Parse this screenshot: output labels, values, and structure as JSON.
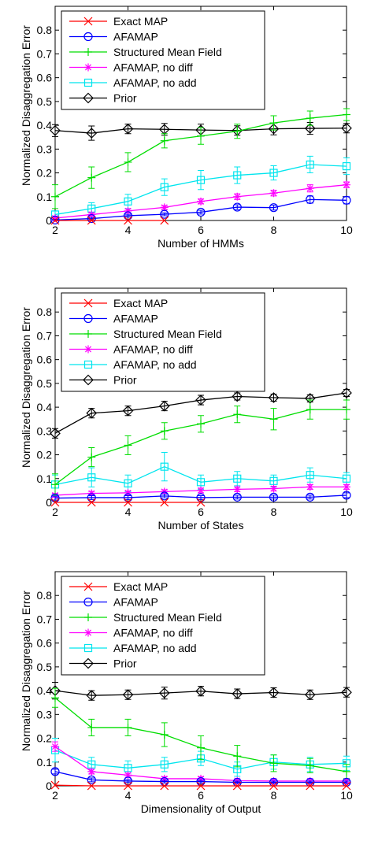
{
  "chart_data": [
    {
      "type": "line",
      "xlabel": "Number of HMMs",
      "ylabel": "Normalized Disaggregation Error",
      "xlim": [
        2,
        10
      ],
      "ylim": [
        0,
        0.9
      ],
      "xticks": [
        2,
        4,
        6,
        8,
        10
      ],
      "yticks": [
        0,
        0.1,
        0.2,
        0.3,
        0.4,
        0.5,
        0.6,
        0.7,
        0.8
      ],
      "legend": "top-left",
      "series": [
        {
          "name": "Exact MAP",
          "color": "#ff0000",
          "marker": "x",
          "x": [
            2,
            3,
            4,
            5
          ],
          "y": [
            0.0,
            0.0,
            0.0,
            0.0
          ],
          "err": [
            0,
            0,
            0,
            0
          ]
        },
        {
          "name": "AFAMAP",
          "color": "#0000ff",
          "marker": "circle",
          "x": [
            2,
            3,
            4,
            5,
            6,
            7,
            8,
            9,
            10
          ],
          "y": [
            0.002,
            0.008,
            0.02,
            0.026,
            0.035,
            0.056,
            0.054,
            0.088,
            0.085
          ],
          "err": [
            0.003,
            0.005,
            0.006,
            0.006,
            0.008,
            0.01,
            0.01,
            0.015,
            0.015
          ]
        },
        {
          "name": "Structured Mean Field",
          "color": "#00dd00",
          "marker": "plus",
          "x": [
            2,
            3,
            4,
            5,
            6,
            7,
            8,
            9,
            10
          ],
          "y": [
            0.1,
            0.18,
            0.245,
            0.335,
            0.355,
            0.375,
            0.41,
            0.43,
            0.445
          ],
          "err": [
            0.05,
            0.045,
            0.04,
            0.03,
            0.035,
            0.03,
            0.03,
            0.03,
            0.025
          ]
        },
        {
          "name": "AFAMAP, no diff",
          "color": "#ff00ff",
          "marker": "asterisk",
          "x": [
            2,
            3,
            4,
            5,
            6,
            7,
            8,
            9,
            10
          ],
          "y": [
            0.01,
            0.025,
            0.04,
            0.055,
            0.08,
            0.1,
            0.115,
            0.135,
            0.15
          ],
          "err": [
            0.005,
            0.007,
            0.008,
            0.008,
            0.01,
            0.012,
            0.012,
            0.015,
            0.012
          ]
        },
        {
          "name": "AFAMAP, no add",
          "color": "#00e5ee",
          "marker": "square",
          "x": [
            2,
            3,
            4,
            5,
            6,
            7,
            8,
            9,
            10
          ],
          "y": [
            0.025,
            0.05,
            0.08,
            0.14,
            0.17,
            0.19,
            0.2,
            0.235,
            0.228
          ],
          "err": [
            0.015,
            0.025,
            0.03,
            0.035,
            0.04,
            0.035,
            0.03,
            0.035,
            0.035
          ]
        },
        {
          "name": "Prior",
          "color": "#000000",
          "marker": "diamond",
          "x": [
            2,
            3,
            4,
            5,
            6,
            7,
            8,
            9,
            10
          ],
          "y": [
            0.378,
            0.367,
            0.385,
            0.383,
            0.38,
            0.378,
            0.385,
            0.387,
            0.388
          ],
          "err": [
            0.025,
            0.03,
            0.02,
            0.025,
            0.025,
            0.02,
            0.025,
            0.025,
            0.02
          ]
        }
      ]
    },
    {
      "type": "line",
      "xlabel": "Number of States",
      "ylabel": "Normalized Disaggregation Error",
      "xlim": [
        2,
        10
      ],
      "ylim": [
        0,
        0.9
      ],
      "xticks": [
        2,
        4,
        6,
        8,
        10
      ],
      "yticks": [
        0,
        0.1,
        0.2,
        0.3,
        0.4,
        0.5,
        0.6,
        0.7,
        0.8
      ],
      "legend": "top-left",
      "series": [
        {
          "name": "Exact MAP",
          "color": "#ff0000",
          "marker": "x",
          "x": [
            2,
            3,
            4,
            5,
            6
          ],
          "y": [
            0.0,
            0.0,
            0.0,
            0.0,
            0.0
          ],
          "err": [
            0,
            0,
            0,
            0,
            0
          ]
        },
        {
          "name": "AFAMAP",
          "color": "#0000ff",
          "marker": "circle",
          "x": [
            2,
            3,
            4,
            5,
            6,
            7,
            8,
            9,
            10
          ],
          "y": [
            0.018,
            0.02,
            0.02,
            0.027,
            0.02,
            0.022,
            0.022,
            0.022,
            0.03
          ],
          "err": [
            0.008,
            0.008,
            0.008,
            0.008,
            0.008,
            0.008,
            0.008,
            0.008,
            0.01
          ]
        },
        {
          "name": "Structured Mean Field",
          "color": "#00dd00",
          "marker": "plus",
          "x": [
            2,
            3,
            4,
            5,
            6,
            7,
            8,
            9,
            10
          ],
          "y": [
            0.075,
            0.19,
            0.24,
            0.3,
            0.33,
            0.37,
            0.35,
            0.39,
            0.39
          ],
          "err": [
            0.045,
            0.04,
            0.04,
            0.035,
            0.035,
            0.035,
            0.045,
            0.04,
            0.04
          ]
        },
        {
          "name": "AFAMAP, no diff",
          "color": "#ff00ff",
          "marker": "asterisk",
          "x": [
            2,
            3,
            4,
            5,
            6,
            7,
            8,
            9,
            10
          ],
          "y": [
            0.03,
            0.038,
            0.04,
            0.045,
            0.05,
            0.055,
            0.058,
            0.065,
            0.065
          ],
          "err": [
            0.008,
            0.008,
            0.008,
            0.008,
            0.01,
            0.01,
            0.01,
            0.01,
            0.01
          ]
        },
        {
          "name": "AFAMAP, no add",
          "color": "#00e5ee",
          "marker": "square",
          "x": [
            2,
            3,
            4,
            5,
            6,
            7,
            8,
            9,
            10
          ],
          "y": [
            0.075,
            0.105,
            0.08,
            0.15,
            0.085,
            0.1,
            0.09,
            0.115,
            0.1
          ],
          "err": [
            0.04,
            0.04,
            0.035,
            0.06,
            0.03,
            0.03,
            0.025,
            0.03,
            0.025
          ]
        },
        {
          "name": "Prior",
          "color": "#000000",
          "marker": "diamond",
          "x": [
            2,
            3,
            4,
            5,
            6,
            7,
            8,
            9,
            10
          ],
          "y": [
            0.29,
            0.375,
            0.385,
            0.405,
            0.43,
            0.445,
            0.44,
            0.437,
            0.46
          ],
          "err": [
            0.02,
            0.02,
            0.02,
            0.02,
            0.02,
            0.015,
            0.015,
            0.015,
            0.015
          ]
        }
      ]
    },
    {
      "type": "line",
      "xlabel": "Dimensionality of Output",
      "ylabel": "Normalized Disaggregation Error",
      "xlim": [
        2,
        10
      ],
      "ylim": [
        0,
        0.9
      ],
      "xticks": [
        2,
        4,
        6,
        8,
        10
      ],
      "yticks": [
        0,
        0.1,
        0.2,
        0.3,
        0.4,
        0.5,
        0.6,
        0.7,
        0.8
      ],
      "legend": "top-left",
      "series": [
        {
          "name": "Exact MAP",
          "color": "#ff0000",
          "marker": "x",
          "x": [
            2,
            3,
            4,
            5,
            6,
            7,
            8,
            9,
            10
          ],
          "y": [
            0.003,
            0.0,
            0.0,
            0.0,
            0.0,
            0.0,
            0.0,
            0.0,
            0.0
          ],
          "err": [
            0,
            0,
            0,
            0,
            0,
            0,
            0,
            0,
            0
          ]
        },
        {
          "name": "AFAMAP",
          "color": "#0000ff",
          "marker": "circle",
          "x": [
            2,
            3,
            4,
            5,
            6,
            7,
            8,
            9,
            10
          ],
          "y": [
            0.06,
            0.025,
            0.02,
            0.018,
            0.018,
            0.015,
            0.015,
            0.015,
            0.015
          ],
          "err": [
            0.01,
            0.008,
            0.006,
            0.006,
            0.006,
            0.005,
            0.005,
            0.005,
            0.005
          ]
        },
        {
          "name": "Structured Mean Field",
          "color": "#00dd00",
          "marker": "plus",
          "x": [
            2,
            3,
            4,
            5,
            6,
            7,
            8,
            9,
            10
          ],
          "y": [
            0.37,
            0.245,
            0.245,
            0.215,
            0.16,
            0.125,
            0.095,
            0.085,
            0.06
          ],
          "err": [
            0.04,
            0.035,
            0.035,
            0.05,
            0.05,
            0.045,
            0.035,
            0.03,
            0.03
          ]
        },
        {
          "name": "AFAMAP, no diff",
          "color": "#ff00ff",
          "marker": "asterisk",
          "x": [
            2,
            3,
            4,
            5,
            6,
            7,
            8,
            9,
            10
          ],
          "y": [
            0.165,
            0.06,
            0.045,
            0.03,
            0.03,
            0.022,
            0.02,
            0.02,
            0.02
          ],
          "err": [
            0.02,
            0.01,
            0.008,
            0.008,
            0.008,
            0.006,
            0.006,
            0.006,
            0.006
          ]
        },
        {
          "name": "AFAMAP, no add",
          "color": "#00e5ee",
          "marker": "square",
          "x": [
            2,
            3,
            4,
            5,
            6,
            7,
            8,
            9,
            10
          ],
          "y": [
            0.15,
            0.09,
            0.075,
            0.09,
            0.115,
            0.07,
            0.1,
            0.09,
            0.095
          ],
          "err": [
            0.05,
            0.03,
            0.03,
            0.03,
            0.03,
            0.03,
            0.03,
            0.03,
            0.03
          ]
        },
        {
          "name": "Prior",
          "color": "#000000",
          "marker": "diamond",
          "x": [
            2,
            3,
            4,
            5,
            6,
            7,
            8,
            9,
            10
          ],
          "y": [
            0.4,
            0.38,
            0.383,
            0.39,
            0.398,
            0.387,
            0.392,
            0.383,
            0.393
          ],
          "err": [
            0.035,
            0.02,
            0.02,
            0.025,
            0.02,
            0.02,
            0.02,
            0.02,
            0.02
          ]
        }
      ]
    }
  ]
}
